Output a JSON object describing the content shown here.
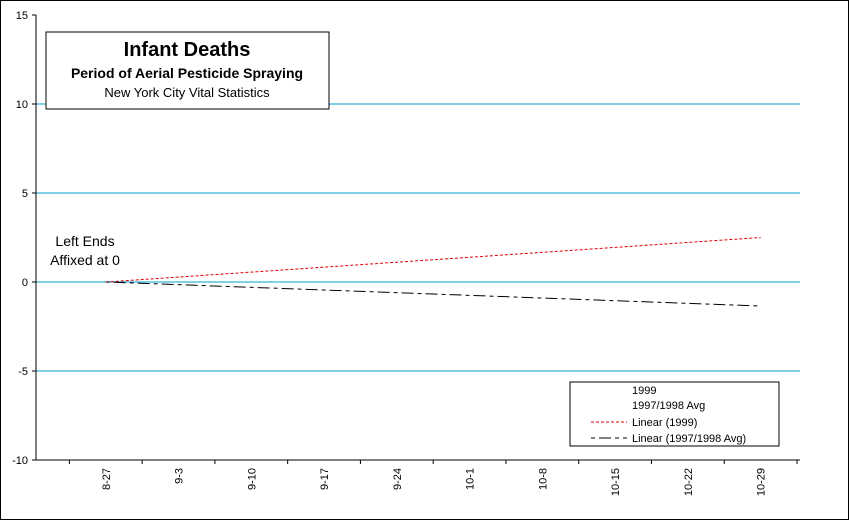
{
  "chart_data": {
    "type": "line",
    "title": "Infant Deaths",
    "subtitle": "Period of Aerial Pesticide Spraying",
    "source": "New York City Vital Statistics",
    "annotation": [
      "Left Ends",
      "Affixed at 0"
    ],
    "x_tick_labels": [
      "8-27",
      "9-3",
      "9-10",
      "9-17",
      "9-24",
      "10-1",
      "10-8",
      "10-15",
      "10-22",
      "10-29"
    ],
    "ylim": [
      -10,
      15
    ],
    "y_ticks": [
      -10,
      -5,
      0,
      5,
      10,
      15
    ],
    "gridlines": [
      -5,
      0,
      5,
      10
    ],
    "legend_position": "bottom-right",
    "series": [
      {
        "name": "1999",
        "values": [],
        "color": "#000000",
        "style": "none"
      },
      {
        "name": "1997/1998 Avg",
        "values": [],
        "color": "#000000",
        "style": "none"
      },
      {
        "name": "Linear (1999)",
        "x": [
          0,
          9
        ],
        "values": [
          0,
          2.5
        ],
        "color": "#e00000",
        "style": "dashed"
      },
      {
        "name": "Linear (1997/1998 Avg)",
        "x": [
          0,
          9
        ],
        "values": [
          0,
          -1.35
        ],
        "color": "#000000",
        "style": "dash-dot"
      }
    ]
  },
  "colors": {
    "grid": "#00a0d0",
    "axis": "#000000",
    "background": "#ffffff"
  }
}
